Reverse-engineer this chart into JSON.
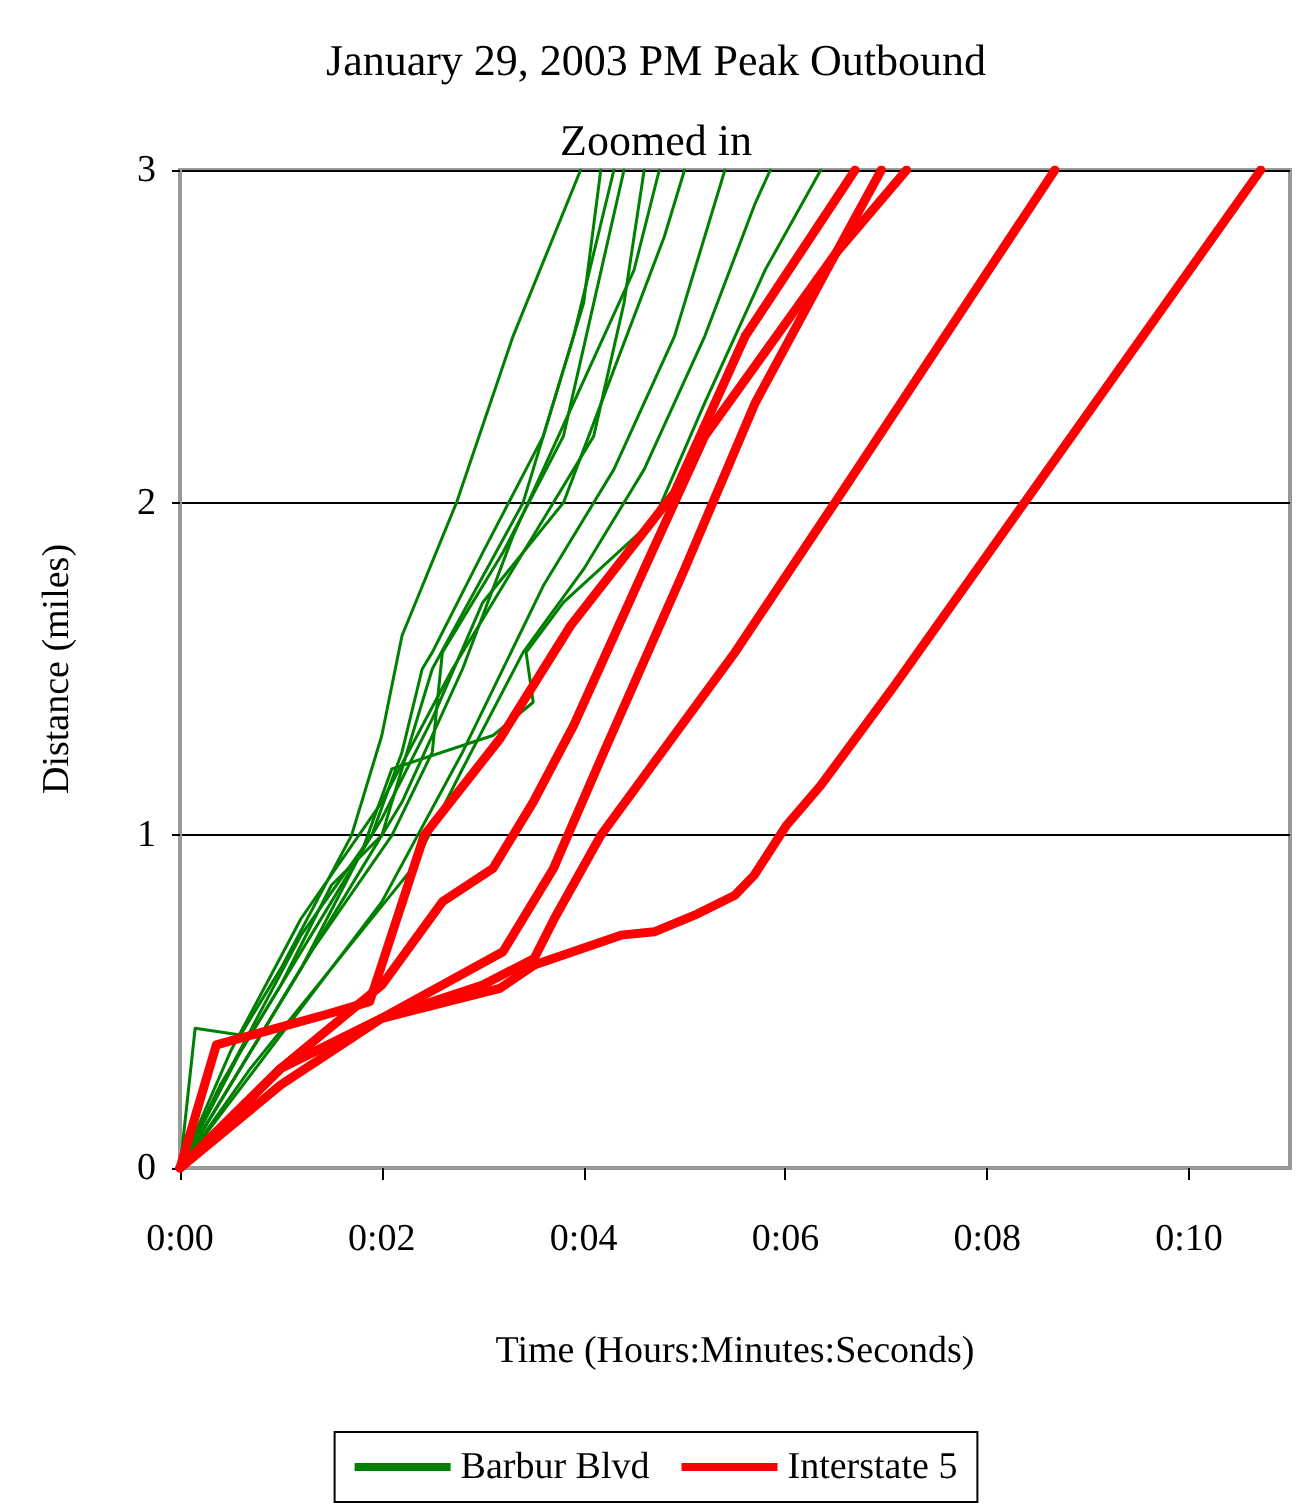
{
  "chart_data": {
    "type": "line",
    "title": "January 29, 2003 PM Peak Outbound",
    "subtitle": "Zoomed in",
    "xlabel": "Time (Hours:Minutes:Seconds)",
    "ylabel": "Distance (miles)",
    "xlim": [
      0,
      11
    ],
    "xticks": [
      {
        "value": 0,
        "label": "0:00"
      },
      {
        "value": 2,
        "label": "0:02"
      },
      {
        "value": 4,
        "label": "0:04"
      },
      {
        "value": 6,
        "label": "0:06"
      },
      {
        "value": 8,
        "label": "0:08"
      },
      {
        "value": 10,
        "label": "0:10"
      }
    ],
    "ylim": [
      0,
      3
    ],
    "yticks": [
      0,
      1,
      2,
      3
    ],
    "grid": "y",
    "legend": "bottom",
    "marker": "none",
    "line_style": "solid",
    "series": [
      {
        "name": "Barbur Blvd",
        "color": "#008000",
        "x": [
          0,
          0.15,
          0.6,
          1,
          1.7,
          2,
          2.2,
          2.74,
          3.3,
          3.97
        ],
        "values": [
          0,
          0.42,
          0.4,
          0.6,
          1,
          1.3,
          1.6,
          2,
          2.5,
          3
        ]
      },
      {
        "color": "#008000",
        "x": [
          0,
          0.5,
          1.2,
          1.9,
          2.2,
          2.4,
          2.5,
          3,
          3.6,
          4,
          4.17
        ],
        "values": [
          0,
          0.3,
          0.7,
          1,
          1.25,
          1.5,
          1.55,
          1.85,
          2.2,
          2.6,
          3
        ]
      },
      {
        "color": "#008000",
        "x": [
          0,
          0.4,
          1,
          1.5,
          2,
          2.3,
          2.5,
          3.4,
          3.9,
          4.3
        ],
        "values": [
          0,
          0.25,
          0.55,
          0.85,
          1,
          1.3,
          1.5,
          2,
          2.5,
          3
        ]
      },
      {
        "color": "#008000",
        "x": [
          0,
          0.6,
          1.3,
          2.1,
          2.5,
          2.6,
          3.2,
          3.8,
          4.1,
          4.4
        ],
        "values": [
          0,
          0.3,
          0.65,
          1,
          1.25,
          1.55,
          1.85,
          2.2,
          2.6,
          3
        ]
      },
      {
        "color": "#008000",
        "x": [
          0,
          0.5,
          1.2,
          1.8,
          2.1,
          3.1,
          3.5,
          3.43,
          3.8,
          4.7,
          5.2,
          5.8,
          6.35
        ],
        "values": [
          0,
          0.25,
          0.6,
          0.95,
          1.2,
          1.3,
          1.4,
          1.55,
          1.7,
          1.95,
          2.3,
          2.7,
          3
        ]
      },
      {
        "color": "#008000",
        "x": [
          0,
          0.7,
          1.5,
          2.3,
          2.8,
          3.4,
          4,
          4.6,
          5.2,
          5.7,
          5.85
        ],
        "values": [
          0,
          0.3,
          0.6,
          0.9,
          1.2,
          1.55,
          1.8,
          2.1,
          2.5,
          2.9,
          3
        ]
      },
      {
        "color": "#008000",
        "x": [
          0,
          0.6,
          1.3,
          2,
          2.5,
          3,
          3.8,
          4.3,
          4.8,
          5
        ],
        "values": [
          0,
          0.35,
          0.7,
          1.05,
          1.35,
          1.7,
          2,
          2.4,
          2.8,
          3
        ]
      },
      {
        "color": "#008000",
        "x": [
          0,
          0.8,
          1.6,
          2.2,
          2.8,
          3.3,
          3.9,
          4.5,
          4.75
        ],
        "values": [
          0,
          0.4,
          0.8,
          1.1,
          1.5,
          1.9,
          2.3,
          2.7,
          3
        ]
      },
      {
        "color": "#008000",
        "x": [
          0,
          0.5,
          1.2,
          2,
          2.7,
          3.5,
          4.1,
          4.4,
          4.6
        ],
        "values": [
          0,
          0.35,
          0.75,
          1.1,
          1.5,
          1.9,
          2.2,
          2.6,
          3
        ]
      },
      {
        "color": "#008000",
        "x": [
          0,
          1,
          2,
          2.8,
          3.6,
          4.3,
          4.9,
          5.4
        ],
        "values": [
          0,
          0.4,
          0.8,
          1.25,
          1.75,
          2.1,
          2.5,
          3
        ]
      },
      {
        "name": "Interstate 5",
        "color": "#ff0000",
        "x": [
          0,
          0.36,
          1.43,
          1.88,
          2.42,
          3.17,
          3.87,
          4.9,
          5.6,
          6.69
        ],
        "values": [
          0,
          0.37,
          0.46,
          0.5,
          1,
          1.29,
          1.63,
          2.03,
          2.5,
          3
        ]
      },
      {
        "color": "#ff0000",
        "x": [
          0,
          1,
          2,
          2.6,
          3.1,
          3.5,
          3.9,
          4.6,
          5.2,
          6.5,
          7.2
        ],
        "values": [
          0,
          0.3,
          0.55,
          0.8,
          0.9,
          1.1,
          1.33,
          1.8,
          2.2,
          2.75,
          3
        ]
      },
      {
        "color": "#ff0000",
        "x": [
          0,
          1,
          2,
          3.2,
          3.7,
          4.2,
          5,
          5.7,
          6.5,
          6.95
        ],
        "values": [
          0,
          0.25,
          0.45,
          0.65,
          0.9,
          1.25,
          1.8,
          2.3,
          2.75,
          3
        ]
      },
      {
        "color": "#ff0000",
        "x": [
          0,
          1,
          2,
          3,
          3.51,
          3.71,
          4.17,
          5.5,
          6.49,
          8.67
        ],
        "values": [
          0,
          0.3,
          0.45,
          0.55,
          0.63,
          0.75,
          1,
          1.55,
          2,
          3
        ]
      },
      {
        "color": "#ff0000",
        "x": [
          0,
          1,
          2,
          3.17,
          3.51,
          4.37,
          4.7,
          5.1,
          5.5,
          5.69,
          6.01,
          6.35,
          7.08,
          10.71
        ],
        "values": [
          0,
          0.3,
          0.45,
          0.54,
          0.61,
          0.7,
          0.71,
          0.76,
          0.82,
          0.88,
          1.03,
          1.15,
          1.45,
          3
        ]
      }
    ]
  }
}
